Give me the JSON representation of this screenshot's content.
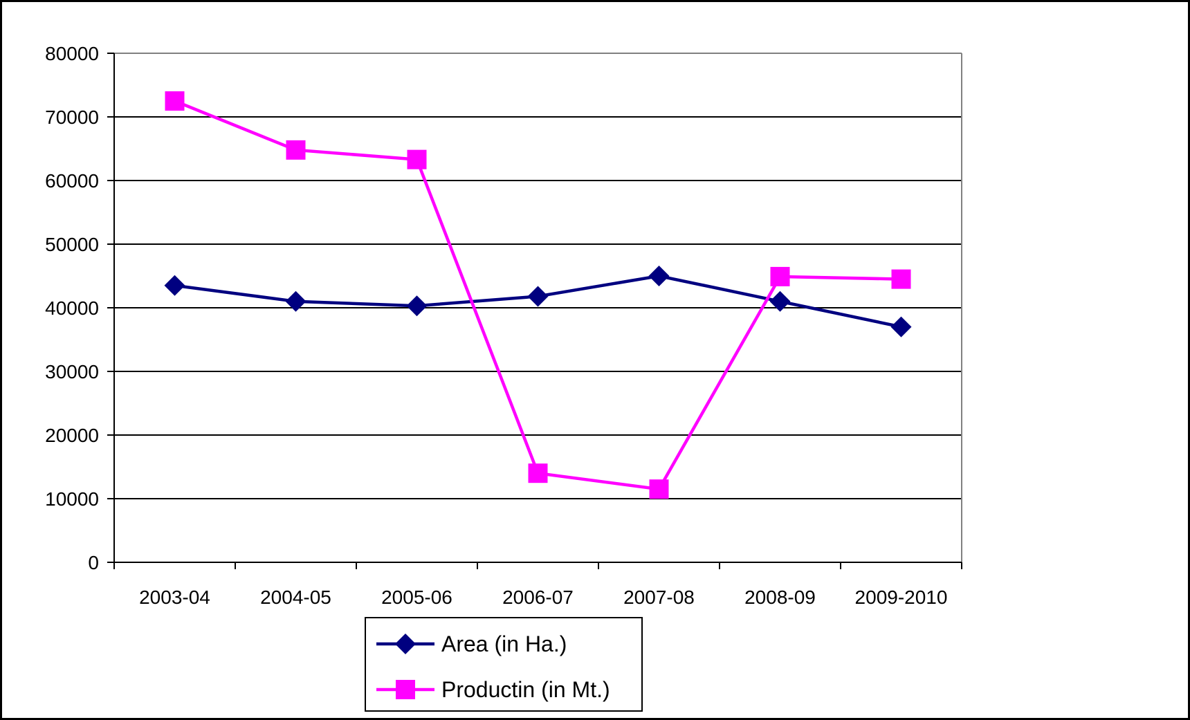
{
  "chart_data": {
    "type": "line",
    "title": "",
    "xlabel": "",
    "ylabel": "",
    "categories": [
      "2003-04",
      "2004-05",
      "2005-06",
      "2006-07",
      "2007-08",
      "2008-09",
      "2009-2010"
    ],
    "ylim": [
      0,
      80000
    ],
    "yticks": [
      0,
      10000,
      20000,
      30000,
      40000,
      50000,
      60000,
      70000,
      80000
    ],
    "grid": true,
    "legend_position": "bottom",
    "series": [
      {
        "name": "Area (in Ha.)",
        "marker": "diamond",
        "color": "#000080",
        "values": [
          43500,
          41000,
          40300,
          41800,
          45000,
          41000,
          37000
        ]
      },
      {
        "name": "Productin (in Mt.)",
        "marker": "square",
        "color": "#ff00ff",
        "values": [
          72500,
          64800,
          63300,
          14000,
          11500,
          44900,
          44500
        ]
      }
    ]
  }
}
